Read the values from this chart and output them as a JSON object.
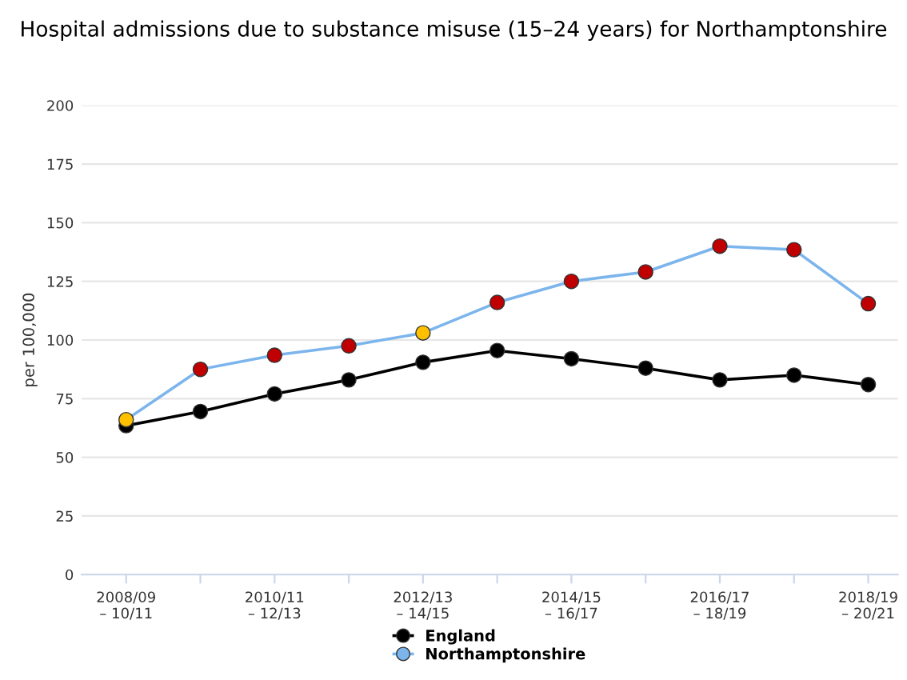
{
  "chart_data": {
    "type": "line",
    "title": "Hospital admissions due to substance misuse (15–24 years) for Northamptonshire",
    "ylabel": "per 100,000",
    "categories": [
      "2008/09\n– 10/11",
      null,
      "2010/11\n– 12/13",
      null,
      "2012/13\n– 14/15",
      null,
      "2014/15\n– 16/17",
      null,
      "2016/17\n– 18/19",
      null,
      "2018/19\n– 20/21"
    ],
    "series": [
      {
        "name": "England",
        "color": "#000000",
        "values": [
          63.5,
          69.5,
          77,
          83,
          90.5,
          95.5,
          92,
          88,
          83,
          85,
          81
        ]
      },
      {
        "name": "Northamptonshire",
        "color": "#7cb5ec",
        "colors": [
          "#ffc000",
          "#c00000",
          "#c00000",
          "#c00000",
          "#ffc000",
          "#c00000",
          "#c00000",
          "#c00000",
          "#c00000",
          "#c00000",
          "#c00000"
        ],
        "values": [
          66,
          87.5,
          93.5,
          97.5,
          103,
          116,
          125,
          129,
          140,
          138.5,
          115.5
        ]
      }
    ],
    "ylim": [
      0,
      200
    ],
    "yticks": [
      0,
      25,
      50,
      75,
      100,
      125,
      150,
      175,
      200
    ],
    "grid": "y",
    "legend": "bottom",
    "marker": "circle",
    "line_style": "solid"
  }
}
